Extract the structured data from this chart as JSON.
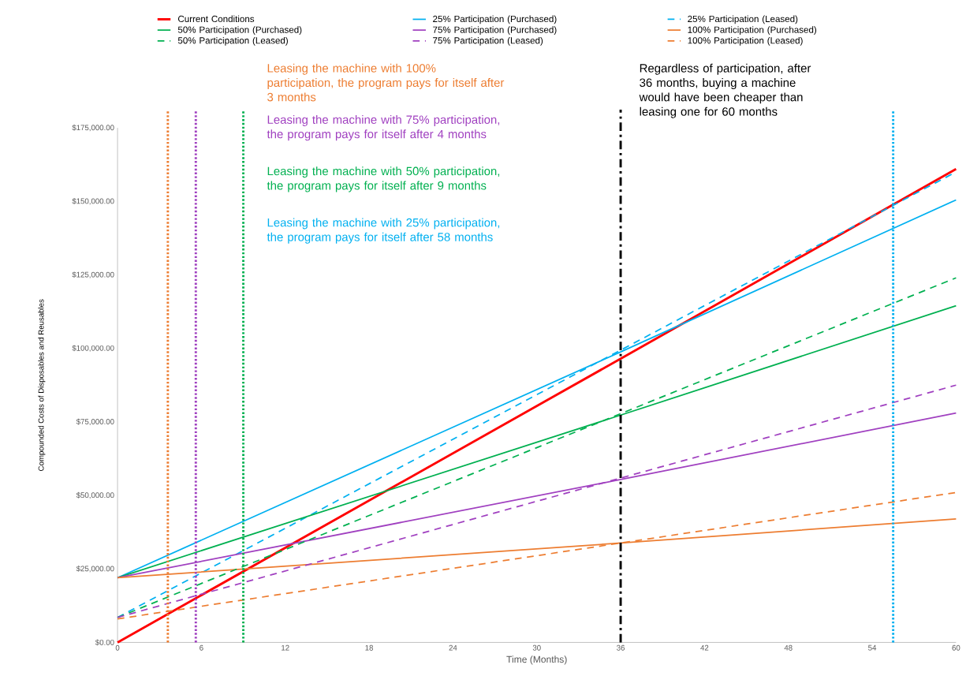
{
  "chart_data": {
    "type": "line",
    "xlabel": "Time (Months)",
    "ylabel": "Compounded Costs of Disposables and Reusables",
    "xlim": [
      0,
      60
    ],
    "xticks": [
      0,
      6,
      12,
      18,
      24,
      30,
      36,
      42,
      48,
      54,
      60
    ],
    "ylim": [
      0,
      175000
    ],
    "yticks": [
      {
        "value": 0,
        "label": "$0.00"
      },
      {
        "value": 25000,
        "label": "$25,000.00"
      },
      {
        "value": 50000,
        "label": "$50,000.00"
      },
      {
        "value": 75000,
        "label": "$75,000.00"
      },
      {
        "value": 100000,
        "label": "$100,000.00"
      },
      {
        "value": 125000,
        "label": "$125,000.00"
      },
      {
        "value": 150000,
        "label": "$150,000.00"
      },
      {
        "value": 175000,
        "label": "$175,000.00"
      }
    ],
    "x": [
      0,
      36,
      60
    ],
    "series": [
      {
        "name": "Current Conditions",
        "color": "#ff0000",
        "line_style": "solid",
        "values": [
          0,
          96500,
          161000
        ]
      },
      {
        "name": "25% Participation (Purchased)",
        "color": "#00b0f0",
        "line_style": "solid",
        "values": [
          22000,
          98800,
          150500
        ]
      },
      {
        "name": "25% Participation (Leased)",
        "color": "#00b0f0",
        "line_style": "dashed",
        "values": [
          8500,
          99400,
          160000
        ]
      },
      {
        "name": "50% Participation (Purchased)",
        "color": "#00b050",
        "line_style": "solid",
        "values": [
          22000,
          77300,
          114500
        ]
      },
      {
        "name": "75% Participation (Purchased)",
        "color": "#a040c0",
        "line_style": "solid",
        "values": [
          22000,
          55400,
          78000
        ]
      },
      {
        "name": "100% Participation (Purchased)",
        "color": "#ed7d31",
        "line_style": "solid",
        "values": [
          22000,
          33800,
          42000
        ]
      },
      {
        "name": "50% Participation (Leased)",
        "color": "#00b050",
        "line_style": "dashed",
        "values": [
          8500,
          77800,
          124000
        ]
      },
      {
        "name": "75% Participation (Leased)",
        "color": "#a040c0",
        "line_style": "dashed",
        "values": [
          8500,
          55900,
          87500
        ]
      },
      {
        "name": "100% Participation (Leased)",
        "color": "#ed7d31",
        "line_style": "dashed",
        "values": [
          8000,
          33800,
          51000
        ]
      }
    ],
    "ref_lines": [
      {
        "axis": "x",
        "value": 3.6,
        "color": "#ed7d31",
        "line_style": "dotted"
      },
      {
        "axis": "x",
        "value": 5.6,
        "color": "#a040c0",
        "line_style": "dotted"
      },
      {
        "axis": "x",
        "value": 9,
        "color": "#00b050",
        "line_style": "dotted"
      },
      {
        "axis": "x",
        "value": 36,
        "color": "#000000",
        "line_style": "dashdot"
      },
      {
        "axis": "x",
        "value": 55.5,
        "color": "#00b0f0",
        "line_style": "dotted"
      }
    ],
    "annotations": [
      "Leasing the machine with 100% participation, the program pays for itself after 3 months",
      "Leasing the machine with 75% participation, the program pays for itself after 4 months",
      "Leasing the machine with 50% participation, the program pays for itself after 9 months",
      "Leasing the machine with 25% participation, the program pays for itself after 58 months",
      "Regardless of participation, after 36 months, buying a machine would have been cheaper than leasing one for 60 months"
    ],
    "legend": "top",
    "grid": false,
    "marker": "none"
  }
}
